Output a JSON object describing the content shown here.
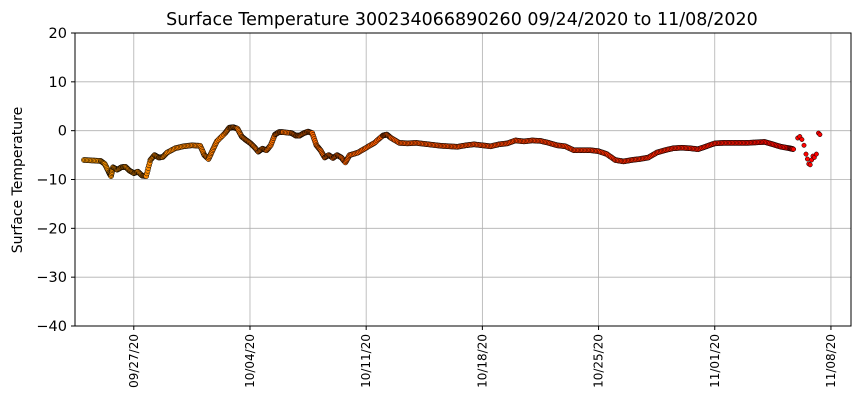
{
  "chart_data": {
    "type": "scatter",
    "title": "Surface Temperature 300234066890260  09/24/2020 to 11/08/2020",
    "xlabel": "",
    "ylabel": "Surface Temperature",
    "x_range": [
      "2020-09-23T11:00",
      "2020-11-09T05:00"
    ],
    "ylim": [
      -40,
      20
    ],
    "yticks": [
      20,
      10,
      0,
      -10,
      -20,
      -30,
      -40
    ],
    "ytick_labels": [
      "20",
      "10",
      "0",
      "−10",
      "−20",
      "−30",
      "−40"
    ],
    "xticks": [
      "2020-09-27",
      "2020-10-04",
      "2020-10-11",
      "2020-10-18",
      "2020-10-25",
      "2020-11-01",
      "2020-11-08"
    ],
    "xtick_labels": [
      "09/27/20",
      "10/04/20",
      "10/11/20",
      "10/18/20",
      "10/25/20",
      "11/01/20",
      "11/08/20"
    ],
    "grid": true,
    "color_gradient": [
      "#ff9900",
      "#ff0000"
    ],
    "marker_edge_color": "#000000",
    "series": [
      {
        "values": [
          [
            "2020-09-24T00:00",
            -6.0
          ],
          [
            "2020-09-24T12:00",
            -6.1
          ],
          [
            "2020-09-25T00:00",
            -6.2
          ],
          [
            "2020-09-25T06:00",
            -6.8
          ],
          [
            "2020-09-25T12:00",
            -8.5
          ],
          [
            "2020-09-25T15:00",
            -9.3
          ],
          [
            "2020-09-25T18:00",
            -7.5
          ],
          [
            "2020-09-26T00:00",
            -8.0
          ],
          [
            "2020-09-26T06:00",
            -7.5
          ],
          [
            "2020-09-26T12:00",
            -7.4
          ],
          [
            "2020-09-26T18:00",
            -8.2
          ],
          [
            "2020-09-27T00:00",
            -8.7
          ],
          [
            "2020-09-27T06:00",
            -8.4
          ],
          [
            "2020-09-27T12:00",
            -9.2
          ],
          [
            "2020-09-27T18:00",
            -9.3
          ],
          [
            "2020-09-28T00:00",
            -6.0
          ],
          [
            "2020-09-28T06:00",
            -5.0
          ],
          [
            "2020-09-28T12:00",
            -5.5
          ],
          [
            "2020-09-28T18:00",
            -5.4
          ],
          [
            "2020-09-29T00:00",
            -4.5
          ],
          [
            "2020-09-29T12:00",
            -3.6
          ],
          [
            "2020-09-30T00:00",
            -3.2
          ],
          [
            "2020-09-30T12:00",
            -3.0
          ],
          [
            "2020-10-01T00:00",
            -3.1
          ],
          [
            "2020-10-01T06:00",
            -5.0
          ],
          [
            "2020-10-01T12:00",
            -5.8
          ],
          [
            "2020-10-01T18:00",
            -4.0
          ],
          [
            "2020-10-02T00:00",
            -2.2
          ],
          [
            "2020-10-02T12:00",
            -0.5
          ],
          [
            "2020-10-02T18:00",
            0.6
          ],
          [
            "2020-10-03T00:00",
            0.7
          ],
          [
            "2020-10-03T06:00",
            0.4
          ],
          [
            "2020-10-03T12:00",
            -1.2
          ],
          [
            "2020-10-03T18:00",
            -1.9
          ],
          [
            "2020-10-04T00:00",
            -2.5
          ],
          [
            "2020-10-04T06:00",
            -3.3
          ],
          [
            "2020-10-04T12:00",
            -4.3
          ],
          [
            "2020-10-04T18:00",
            -3.7
          ],
          [
            "2020-10-05T00:00",
            -4.0
          ],
          [
            "2020-10-05T06:00",
            -3.0
          ],
          [
            "2020-10-05T12:00",
            -0.8
          ],
          [
            "2020-10-05T18:00",
            -0.3
          ],
          [
            "2020-10-06T00:00",
            -0.3
          ],
          [
            "2020-10-06T12:00",
            -0.5
          ],
          [
            "2020-10-06T18:00",
            -1.0
          ],
          [
            "2020-10-07T00:00",
            -1.0
          ],
          [
            "2020-10-07T06:00",
            -0.5
          ],
          [
            "2020-10-07T12:00",
            -0.2
          ],
          [
            "2020-10-07T18:00",
            -0.5
          ],
          [
            "2020-10-08T00:00",
            -3.0
          ],
          [
            "2020-10-08T06:00",
            -4.0
          ],
          [
            "2020-10-08T12:00",
            -5.5
          ],
          [
            "2020-10-08T18:00",
            -5.0
          ],
          [
            "2020-10-09T00:00",
            -5.6
          ],
          [
            "2020-10-09T06:00",
            -5.0
          ],
          [
            "2020-10-09T12:00",
            -5.5
          ],
          [
            "2020-10-09T18:00",
            -6.5
          ],
          [
            "2020-10-10T00:00",
            -5.0
          ],
          [
            "2020-10-10T12:00",
            -4.5
          ],
          [
            "2020-10-11T00:00",
            -3.5
          ],
          [
            "2020-10-11T12:00",
            -2.5
          ],
          [
            "2020-10-12T00:00",
            -1.0
          ],
          [
            "2020-10-12T06:00",
            -0.8
          ],
          [
            "2020-10-12T12:00",
            -1.5
          ],
          [
            "2020-10-13T00:00",
            -2.5
          ],
          [
            "2020-10-13T12:00",
            -2.6
          ],
          [
            "2020-10-14T00:00",
            -2.5
          ],
          [
            "2020-10-14T12:00",
            -2.7
          ],
          [
            "2020-10-15T00:00",
            -2.9
          ],
          [
            "2020-10-15T12:00",
            -3.1
          ],
          [
            "2020-10-16T00:00",
            -3.2
          ],
          [
            "2020-10-16T12:00",
            -3.3
          ],
          [
            "2020-10-17T00:00",
            -3.0
          ],
          [
            "2020-10-17T12:00",
            -2.8
          ],
          [
            "2020-10-18T00:00",
            -3.0
          ],
          [
            "2020-10-18T12:00",
            -3.2
          ],
          [
            "2020-10-19T00:00",
            -2.8
          ],
          [
            "2020-10-19T12:00",
            -2.6
          ],
          [
            "2020-10-20T00:00",
            -2.0
          ],
          [
            "2020-10-20T12:00",
            -2.2
          ],
          [
            "2020-10-21T00:00",
            -2.0
          ],
          [
            "2020-10-21T12:00",
            -2.1
          ],
          [
            "2020-10-22T00:00",
            -2.5
          ],
          [
            "2020-10-22T12:00",
            -3.0
          ],
          [
            "2020-10-23T00:00",
            -3.2
          ],
          [
            "2020-10-23T12:00",
            -4.0
          ],
          [
            "2020-10-24T00:00",
            -4.0
          ],
          [
            "2020-10-24T12:00",
            -4.0
          ],
          [
            "2020-10-25T00:00",
            -4.2
          ],
          [
            "2020-10-25T12:00",
            -4.8
          ],
          [
            "2020-10-26T00:00",
            -6.0
          ],
          [
            "2020-10-26T12:00",
            -6.3
          ],
          [
            "2020-10-27T00:00",
            -6.0
          ],
          [
            "2020-10-27T12:00",
            -5.8
          ],
          [
            "2020-10-28T00:00",
            -5.5
          ],
          [
            "2020-10-28T12:00",
            -4.5
          ],
          [
            "2020-10-29T00:00",
            -4.0
          ],
          [
            "2020-10-29T12:00",
            -3.6
          ],
          [
            "2020-10-30T00:00",
            -3.5
          ],
          [
            "2020-10-30T12:00",
            -3.6
          ],
          [
            "2020-10-31T00:00",
            -3.8
          ],
          [
            "2020-10-31T12:00",
            -3.2
          ],
          [
            "2020-11-01T00:00",
            -2.6
          ],
          [
            "2020-11-01T12:00",
            -2.5
          ],
          [
            "2020-11-02T00:00",
            -2.5
          ],
          [
            "2020-11-02T12:00",
            -2.5
          ],
          [
            "2020-11-03T00:00",
            -2.5
          ],
          [
            "2020-11-03T12:00",
            -2.4
          ],
          [
            "2020-11-04T00:00",
            -2.3
          ],
          [
            "2020-11-04T12:00",
            -2.8
          ],
          [
            "2020-11-05T00:00",
            -3.3
          ],
          [
            "2020-11-05T12:00",
            -3.6
          ],
          [
            "2020-11-05T18:00",
            -3.8
          ],
          [
            "2020-11-06T00:00",
            -1.5
          ],
          [
            "2020-11-06T03:00",
            -1.2
          ],
          [
            "2020-11-06T06:00",
            -1.8
          ],
          [
            "2020-11-06T09:00",
            -3.0
          ],
          [
            "2020-11-06T12:00",
            -4.8
          ],
          [
            "2020-11-06T14:00",
            -5.8
          ],
          [
            "2020-11-06T16:00",
            -6.8
          ],
          [
            "2020-11-06T18:00",
            -7.0
          ],
          [
            "2020-11-06T20:00",
            -6.0
          ],
          [
            "2020-11-06T22:00",
            -5.2
          ],
          [
            "2020-11-07T00:00",
            -5.5
          ],
          [
            "2020-11-07T03:00",
            -4.8
          ],
          [
            "2020-11-07T06:00",
            -0.5
          ],
          [
            "2020-11-07T08:00",
            -0.8
          ]
        ]
      }
    ]
  }
}
